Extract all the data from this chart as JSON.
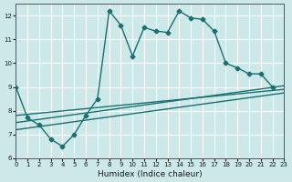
{
  "xlabel": "Humidex (Indice chaleur)",
  "background_color": "#cce8e8",
  "grid_color": "#ffffff",
  "line_color": "#1a7070",
  "xlim": [
    0,
    23
  ],
  "ylim": [
    6,
    12.5
  ],
  "yticks": [
    6,
    7,
    8,
    9,
    10,
    11,
    12
  ],
  "xticks": [
    0,
    1,
    2,
    3,
    4,
    5,
    6,
    7,
    8,
    9,
    10,
    11,
    12,
    13,
    14,
    15,
    16,
    17,
    18,
    19,
    20,
    21,
    22,
    23
  ],
  "main_line_x": [
    0,
    1,
    2,
    3,
    4,
    5,
    6,
    7,
    8,
    9,
    10,
    11,
    12,
    13,
    14,
    15,
    16,
    17,
    18,
    19,
    20,
    21,
    22
  ],
  "main_line_y": [
    9.0,
    7.7,
    7.4,
    6.8,
    6.5,
    7.0,
    7.8,
    8.5,
    12.2,
    11.6,
    10.3,
    11.5,
    11.35,
    11.3,
    12.2,
    11.9,
    11.85,
    11.35,
    10.0,
    9.8,
    9.55,
    9.55,
    9.0
  ],
  "trend1_x": [
    0,
    23
  ],
  "trend1_y": [
    7.8,
    8.9
  ],
  "trend2_x": [
    0,
    23
  ],
  "trend2_y": [
    7.5,
    9.05
  ],
  "trend3_x": [
    0,
    23
  ],
  "trend3_y": [
    7.2,
    8.75
  ]
}
